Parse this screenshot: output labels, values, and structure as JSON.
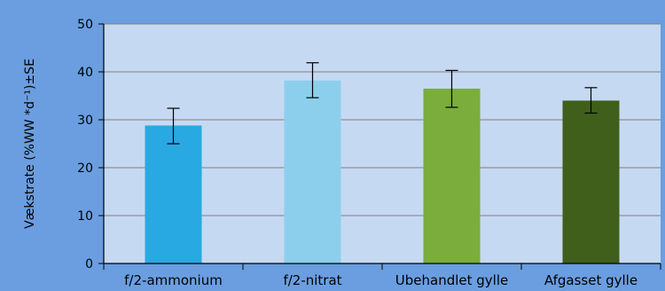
{
  "colors": {
    "page_background": "#6a9ee0",
    "plot_background": "#c6d9f2",
    "gridline": "#808080",
    "axis": "#000000",
    "error_bar": "#000000"
  },
  "chart_data": {
    "type": "bar",
    "title": "",
    "xlabel": "",
    "ylabel": "Vækstrate (%WW *d⁻¹)±SE",
    "ylim": [
      0,
      50
    ],
    "yticks": [
      0,
      10,
      20,
      30,
      40,
      50
    ],
    "grid": true,
    "legend": "none",
    "categories": [
      "f/2-ammonium",
      "f/2-nitrat",
      "Ubehandlet gylle",
      "Afgasset gylle"
    ],
    "values": [
      28.8,
      38.2,
      36.5,
      34.0
    ],
    "error_low": [
      25.0,
      34.6,
      32.6,
      31.4
    ],
    "error_high": [
      32.4,
      41.9,
      40.3,
      36.7
    ],
    "bar_colors": [
      "#29a9e1",
      "#8ccfec",
      "#7aad3b",
      "#3f5f1a"
    ]
  }
}
